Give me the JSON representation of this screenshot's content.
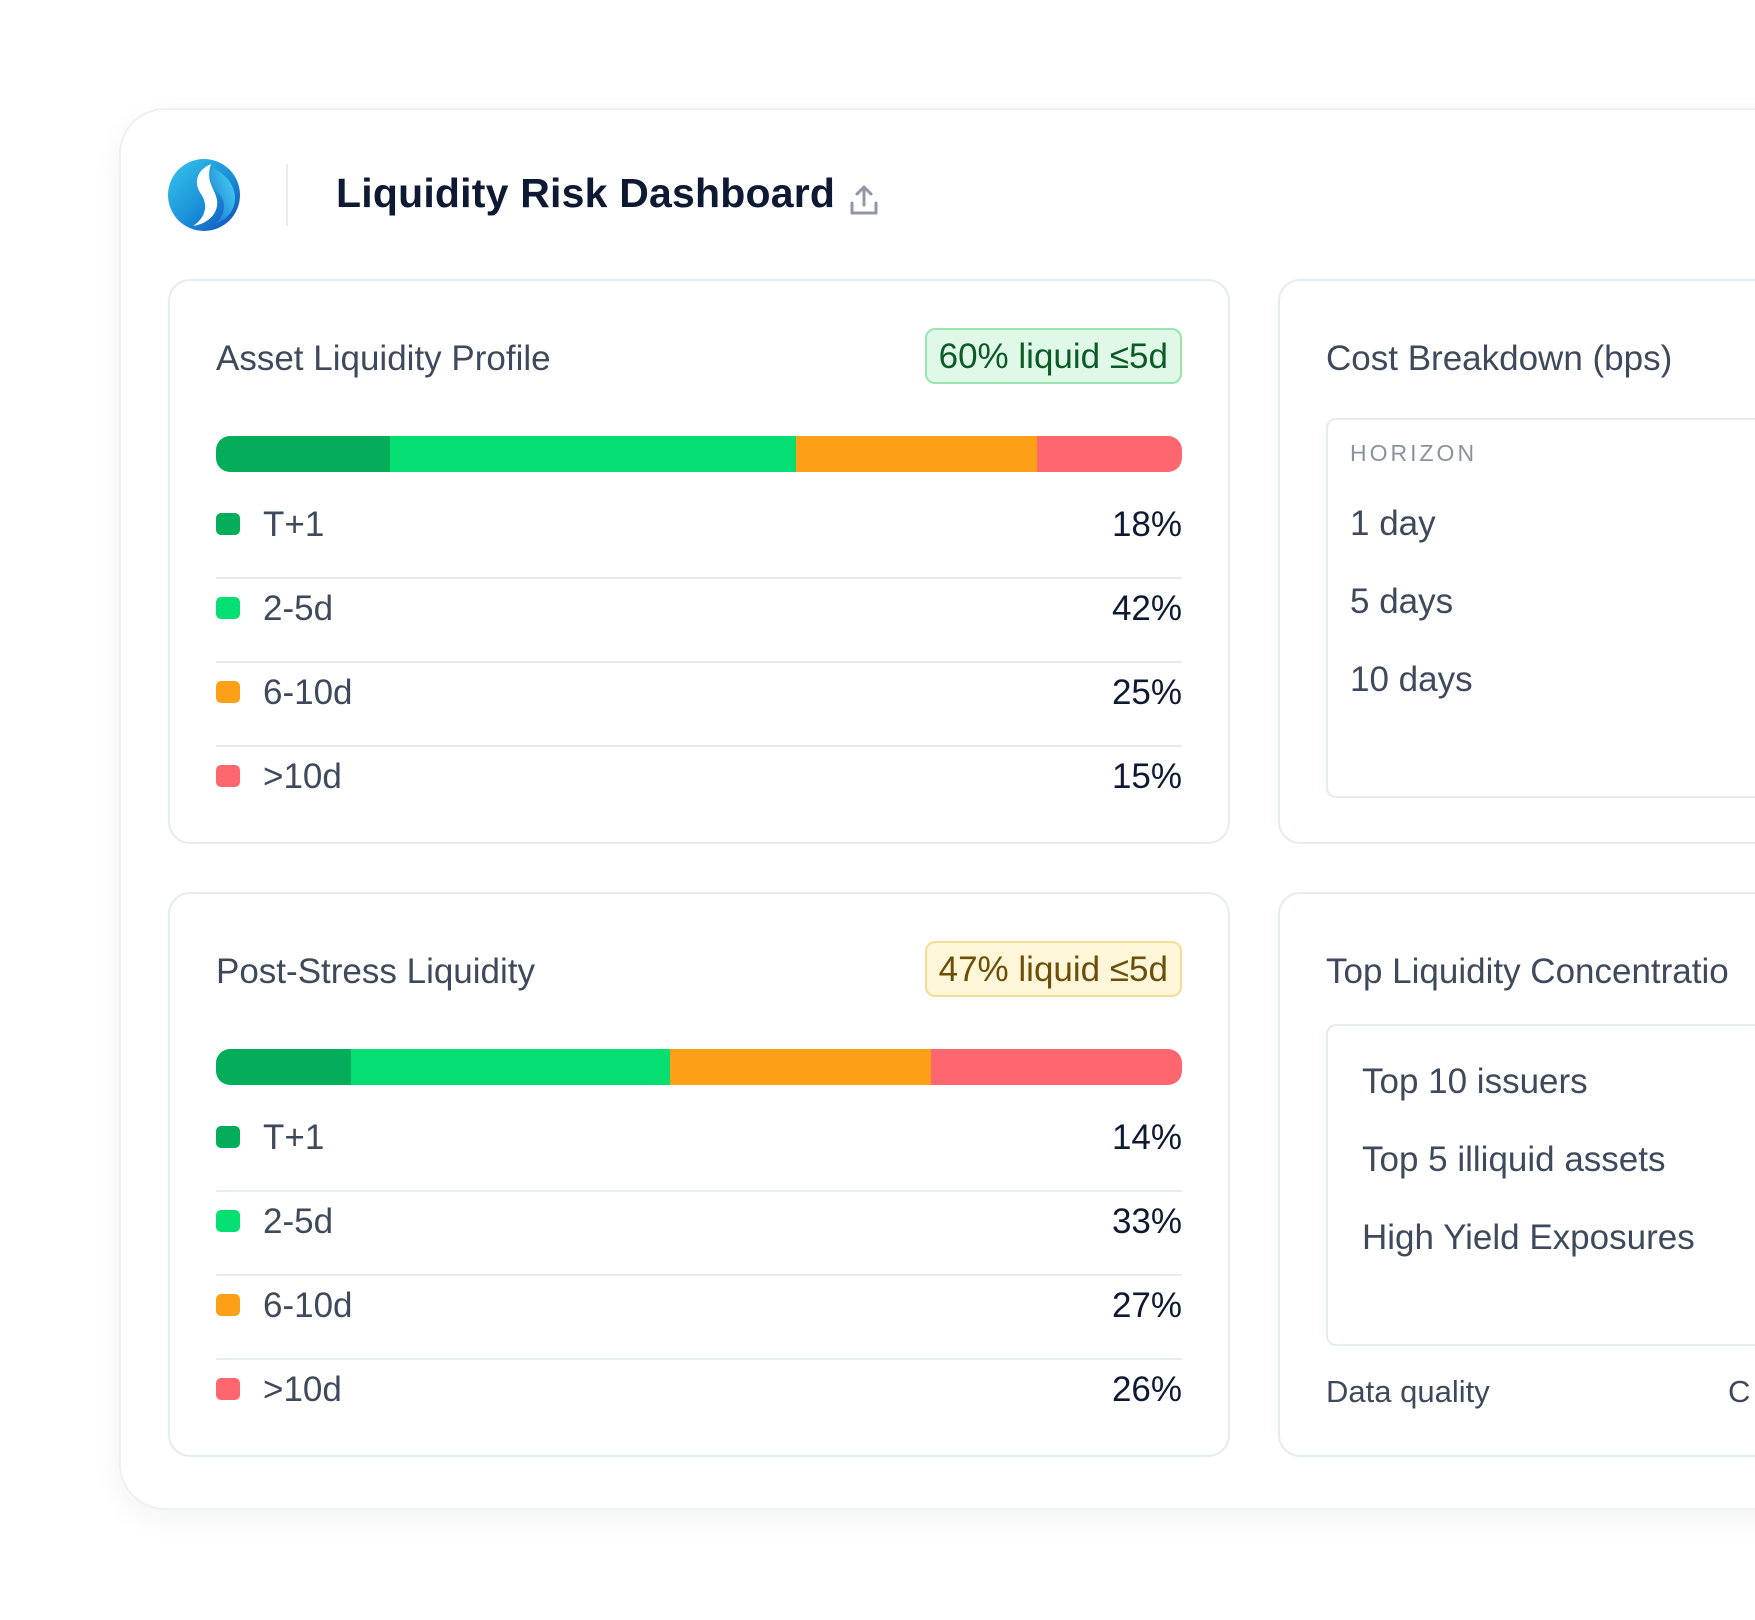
{
  "header": {
    "title": "Liquidity Risk Dashboard"
  },
  "colors": {
    "t1": "#04ad5a",
    "d2_5": "#05df72",
    "d6_10": "#fca017",
    "gt10": "#ff6770"
  },
  "asset_profile": {
    "title": "Asset Liquidity Profile",
    "badge": "60% liquid ≤5d",
    "rows": [
      {
        "label": "T+1",
        "value": "18%",
        "pct": 18
      },
      {
        "label": "2-5d",
        "value": "42%",
        "pct": 42
      },
      {
        "label": "6-10d",
        "value": "25%",
        "pct": 25
      },
      {
        "label": ">10d",
        "value": "15%",
        "pct": 15
      }
    ]
  },
  "post_stress": {
    "title": "Post-Stress Liquidity",
    "badge": "47% liquid ≤5d",
    "rows": [
      {
        "label": "T+1",
        "value": "14%",
        "pct": 14
      },
      {
        "label": "2-5d",
        "value": "33%",
        "pct": 33
      },
      {
        "label": "6-10d",
        "value": "27%",
        "pct": 27
      },
      {
        "label": ">10d",
        "value": "26%",
        "pct": 26
      }
    ]
  },
  "cost_breakdown": {
    "title": "Cost Breakdown (bps)",
    "column_header": "HORIZON",
    "items": [
      "1 day",
      "5 days",
      "10 days"
    ]
  },
  "concentration": {
    "title": "Top Liquidity Concentratio",
    "items": [
      "Top 10 issuers",
      "Top 5 illiquid assets",
      "High Yield Exposures"
    ],
    "footer_label": "Data quality",
    "footer_partial": "C"
  }
}
